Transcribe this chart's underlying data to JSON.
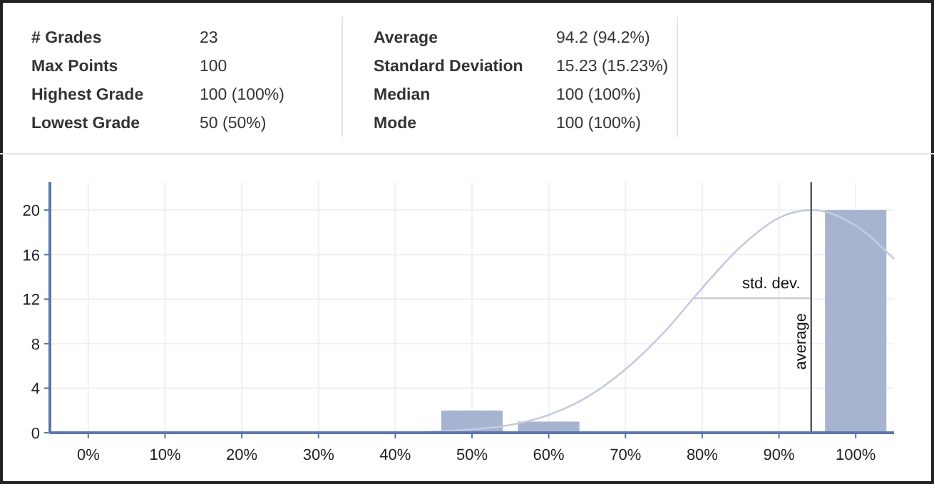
{
  "chart_data": [
    {
      "type": "other",
      "annotations": [
        "# Grades",
        "23",
        "Average",
        "94.2 (94.2%)",
        "Max Points",
        "100",
        "Standard Deviation",
        "15.23 (15.23%)",
        "Highest Grade",
        "100 (100%)",
        "Median",
        "100 (100%)",
        "Lowest Grade",
        "50 (50%)",
        "Mode",
        "100 (100%)"
      ]
    },
    {
      "type": "bar",
      "x": [
        0,
        10,
        20,
        30,
        40,
        50,
        60,
        70,
        80,
        90,
        100
      ],
      "series": [
        {
          "type": "bar",
          "color": "#a7b4cf",
          "values": [
            0,
            0,
            0,
            0,
            0,
            2,
            1,
            0,
            0,
            0,
            20
          ]
        },
        {
          "type": "line",
          "color": "#c4cbe0",
          "x": [
            0,
            10,
            20,
            30,
            40,
            45,
            50,
            55,
            60,
            65,
            70,
            75,
            80,
            85,
            90,
            94.2,
            100,
            105
          ],
          "values": [
            0,
            0,
            0,
            0,
            0,
            0.1,
            0.3,
            0.7,
            1.6,
            3.2,
            5.7,
            9,
            13,
            16.7,
            19.3,
            20,
            18.6,
            15.6
          ]
        },
        {
          "type": "line",
          "color": "#d0d0d0",
          "x": [
            78.97,
            94.2
          ],
          "values": [
            12.1,
            12.1
          ]
        }
      ],
      "xlim": [
        -5,
        105
      ],
      "xticks": [
        {
          "value": 0,
          "label": "0%"
        },
        {
          "value": 10,
          "label": "10%"
        },
        {
          "value": 20,
          "label": "20%"
        },
        {
          "value": 30,
          "label": "30%"
        },
        {
          "value": 40,
          "label": "40%"
        },
        {
          "value": 50,
          "label": "50%"
        },
        {
          "value": 60,
          "label": "60%"
        },
        {
          "value": 70,
          "label": "70%"
        },
        {
          "value": 80,
          "label": "80%"
        },
        {
          "value": 90,
          "label": "90%"
        },
        {
          "value": 100,
          "label": "100%"
        }
      ],
      "ylim": [
        0,
        22.5
      ],
      "yticks": [
        0,
        4,
        8,
        12,
        16,
        20
      ],
      "grid": true,
      "ref_lines": [
        {
          "axis": "x",
          "value": 94.2,
          "label": "average",
          "color": "#555555"
        }
      ],
      "annotations": [
        {
          "text": "std. dev.",
          "x": 89,
          "y": 12.1
        }
      ]
    }
  ]
}
